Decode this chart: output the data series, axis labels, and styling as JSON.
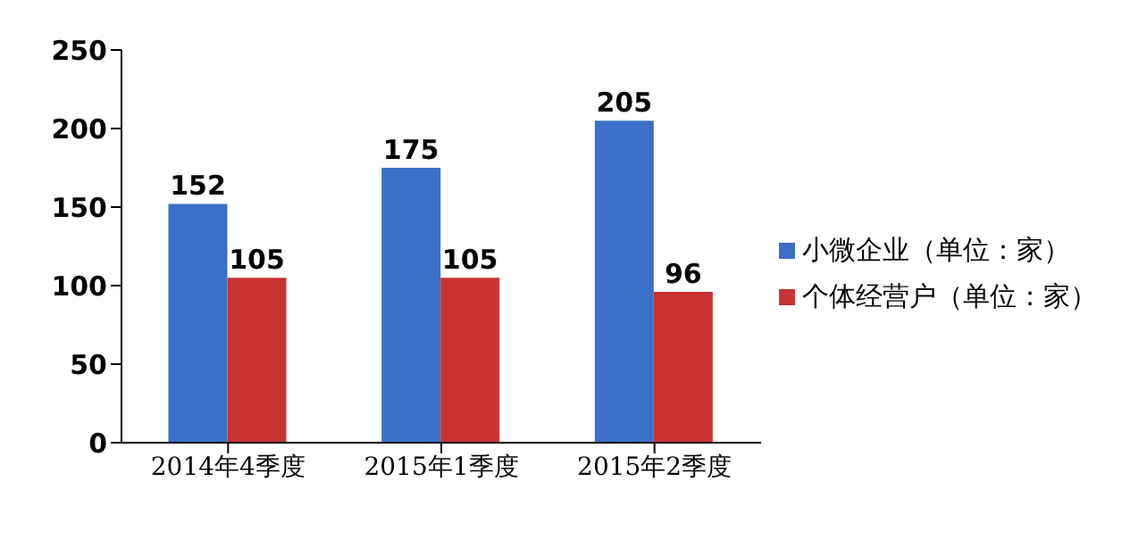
{
  "chart_data": {
    "type": "bar",
    "categories": [
      "2014年4季度",
      "2015年1季度",
      "2015年2季度"
    ],
    "series": [
      {
        "name": "小微企业（单位：家）",
        "color": "#3a6fc8",
        "values": [
          152,
          175,
          205
        ]
      },
      {
        "name": "个体经营户（单位：家）",
        "color": "#c83232",
        "values": [
          105,
          105,
          96
        ]
      }
    ],
    "ylim": [
      0,
      250
    ],
    "yticks": [
      0,
      50,
      100,
      150,
      200,
      250
    ],
    "grid": false,
    "legend": "right",
    "data_labels": true
  }
}
